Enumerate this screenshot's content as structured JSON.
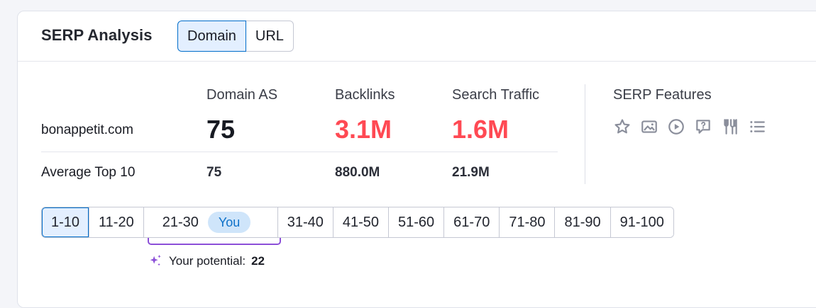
{
  "header": {
    "title": "SERP Analysis",
    "toggle": [
      {
        "label": "Domain",
        "active": true
      },
      {
        "label": "URL",
        "active": false
      }
    ]
  },
  "metrics": {
    "columns": {
      "domain_as": "Domain AS",
      "backlinks": "Backlinks",
      "search_traffic": "Search Traffic",
      "serp_features": "SERP Features"
    },
    "domain_row": {
      "domain": "bonappetit.com",
      "domain_as": "75",
      "backlinks": "3.1M",
      "search_traffic": "1.6M"
    },
    "average_row": {
      "label": "Average Top 10",
      "domain_as": "75",
      "backlinks": "880.0M",
      "search_traffic": "21.9M"
    },
    "highlight_color": "#ff4953"
  },
  "serp_features": {
    "icons": [
      "star-icon",
      "image-icon",
      "video-play-icon",
      "review-bubble-icon",
      "restaurant-icon",
      "list-icon"
    ]
  },
  "pagination": {
    "pages": [
      "1-10",
      "11-20",
      "21-30",
      "31-40",
      "41-50",
      "51-60",
      "61-70",
      "71-80",
      "81-90",
      "91-100"
    ],
    "active": "1-10",
    "you_badge": "You",
    "you_page": "21-30"
  },
  "potential": {
    "label": "Your potential:",
    "value": "22",
    "accent": "#8c4fd8"
  }
}
